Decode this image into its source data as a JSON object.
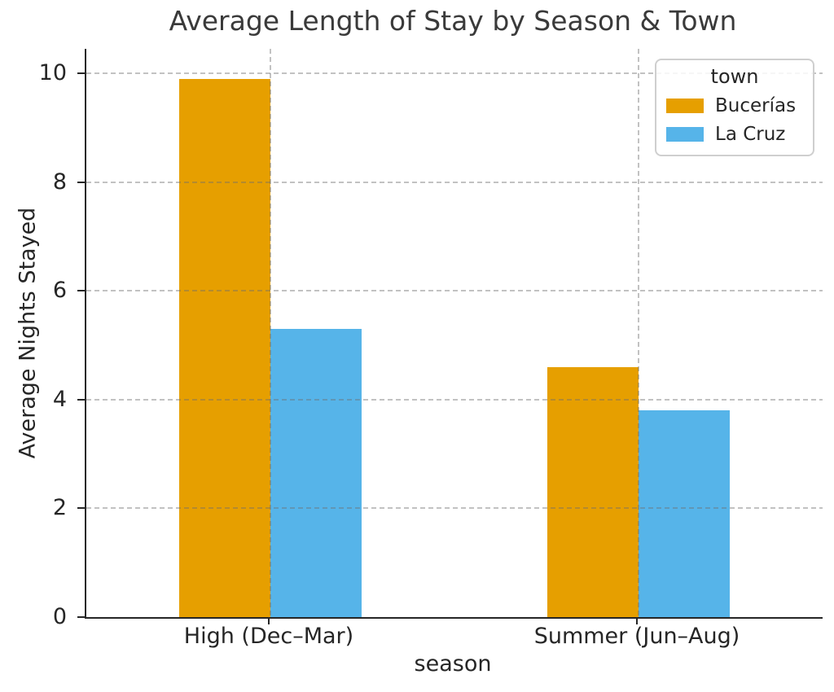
{
  "chart_data": {
    "type": "bar",
    "title": "Average Length of Stay by Season & Town",
    "xlabel": "season",
    "ylabel": "Average Nights Stayed",
    "categories": [
      "High (Dec–Mar)",
      "Summer (Jun–Aug)"
    ],
    "series": [
      {
        "name": "Bucerías",
        "color": "#E69F00",
        "values": [
          9.9,
          4.6
        ]
      },
      {
        "name": "La Cruz",
        "color": "#56B4E9",
        "values": [
          5.3,
          3.8
        ]
      }
    ],
    "legend": {
      "title": "town",
      "position": "upper-right"
    },
    "ylim": [
      0,
      10.45
    ],
    "yticks": [
      0,
      2,
      4,
      6,
      8,
      10
    ],
    "grid": {
      "style": "dashed",
      "horizontal": true,
      "vertical": true,
      "color": "#c9c9c9"
    },
    "colors": {
      "text": "#262626",
      "spine": "#262626",
      "title": "#3a3a3a"
    }
  }
}
